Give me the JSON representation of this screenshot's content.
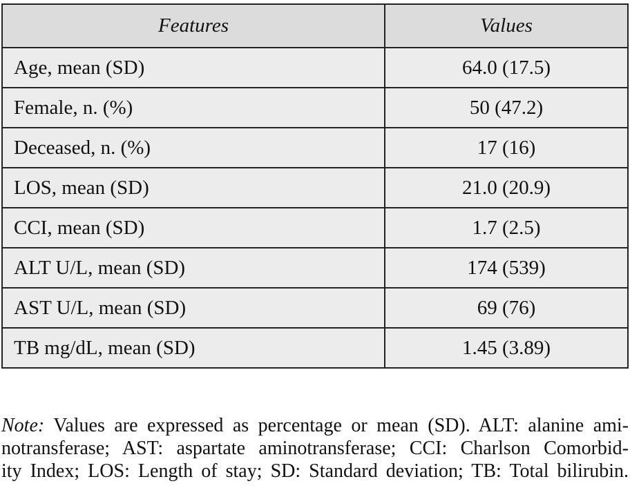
{
  "table": {
    "header": [
      "Features",
      "Values"
    ],
    "rows": [
      [
        "Age, mean (SD)",
        "64.0 (17.5)"
      ],
      [
        "Female, n. (%)",
        "50 (47.2)"
      ],
      [
        "Deceased, n. (%)",
        "17 (16)"
      ],
      [
        "LOS, mean (SD)",
        "21.0 (20.9)"
      ],
      [
        "CCI, mean (SD)",
        "1.7 (2.5)"
      ],
      [
        "ALT U/L, mean (SD)",
        "174 (539)"
      ],
      [
        "AST U/L, mean (SD)",
        "69 (76)"
      ],
      [
        "TB mg/dL, mean (SD)",
        "1.45 (3.89)"
      ]
    ]
  },
  "note": {
    "label": "Note:",
    "lines": [
      "Values are expressed as percentage or mean (SD). ALT: alanine ami-",
      "notransferase; AST: aspartate aminotransferase; CCI: Charlson Comorbid-",
      "ity Index; LOS: Length of stay; SD: Standard deviation; TB: Total bilirubin."
    ]
  }
}
